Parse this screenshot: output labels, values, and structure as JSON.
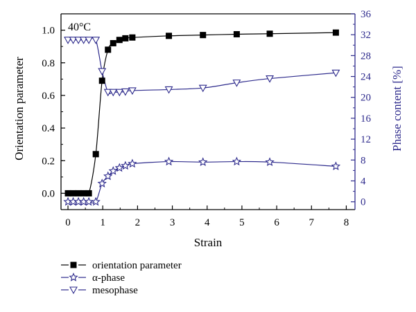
{
  "chart_data": {
    "type": "line",
    "annotation": "40°C",
    "xlabel": "Strain",
    "ylabel_left": "Orientation parameter",
    "ylabel_right": "Phase content [%]",
    "xlim": [
      -0.2,
      8.25
    ],
    "ylim_left": [
      -0.1,
      1.1
    ],
    "ylim_right": [
      -1.5,
      36
    ],
    "xticks": [
      0,
      1,
      2,
      3,
      4,
      5,
      6,
      7,
      8
    ],
    "yticks_left": [
      0.0,
      0.2,
      0.4,
      0.6,
      0.8,
      1.0
    ],
    "yticks_left_labels": [
      "0.0",
      "0.2",
      "0.4",
      "0.6",
      "0.8",
      "1.0"
    ],
    "yticks_right": [
      0,
      4,
      8,
      12,
      16,
      20,
      24,
      28,
      32,
      36
    ],
    "grid": false,
    "legend_position": "bottom-left (below plot)",
    "colors": {
      "black": "#000000",
      "blue": "#2d2a8c"
    },
    "series": [
      {
        "name": "orientation parameter",
        "axis": "left",
        "marker": "square-filled",
        "color": "#000000",
        "x": [
          0.0,
          0.15,
          0.3,
          0.45,
          0.6,
          0.8,
          0.98,
          1.15,
          1.3,
          1.48,
          1.65,
          1.85,
          2.9,
          3.88,
          4.85,
          5.8,
          7.7
        ],
        "y": [
          0.0,
          0.0,
          0.0,
          0.0,
          0.0,
          0.24,
          0.69,
          0.88,
          0.92,
          0.94,
          0.95,
          0.955,
          0.965,
          0.97,
          0.975,
          0.978,
          0.985
        ]
      },
      {
        "name": "α-phase",
        "axis": "right",
        "marker": "star-open",
        "color": "#2d2a8c",
        "x": [
          0.0,
          0.15,
          0.3,
          0.45,
          0.6,
          0.8,
          0.98,
          1.15,
          1.3,
          1.48,
          1.65,
          1.85,
          2.9,
          3.88,
          4.85,
          5.8,
          7.7
        ],
        "y": [
          0,
          0,
          0,
          0,
          0,
          0,
          3.5,
          4.9,
          5.9,
          6.5,
          6.9,
          7.3,
          7.7,
          7.6,
          7.7,
          7.6,
          6.8
        ]
      },
      {
        "name": "mesophase",
        "axis": "right",
        "marker": "triangle-down-open",
        "color": "#2d2a8c",
        "x": [
          0.0,
          0.15,
          0.3,
          0.45,
          0.6,
          0.8,
          0.98,
          1.15,
          1.3,
          1.48,
          1.65,
          1.85,
          2.9,
          3.88,
          4.85,
          5.8,
          7.7
        ],
        "y": [
          31.0,
          31.0,
          31.0,
          31.0,
          31.0,
          31.0,
          25.0,
          21.0,
          21.0,
          21.0,
          21.1,
          21.3,
          21.5,
          21.8,
          22.8,
          23.6,
          24.7
        ]
      }
    ]
  }
}
